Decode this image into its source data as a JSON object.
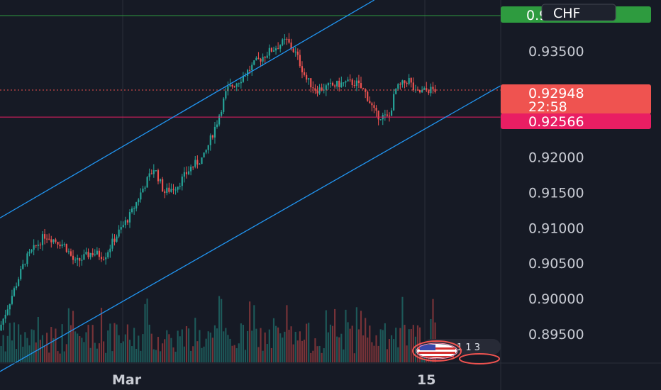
{
  "symbol": {
    "currency_label": "CHF"
  },
  "price_tags": {
    "current_price": "0.92948",
    "countdown": "22:58",
    "red_line_price": "0.92566",
    "top_line_price": "0.94000"
  },
  "colors": {
    "background": "#161a25",
    "up": "#26a69a",
    "down": "#ef5350",
    "channel": "#2196f3",
    "top_line": "#2e9b3f",
    "red_line": "#e91e63",
    "axis_text": "#c9ccd4"
  },
  "icons": {
    "flag": "us-flag-icon"
  },
  "event_badge_text": "1 1 3",
  "chart_data": {
    "type": "candlestick",
    "y_axis": {
      "ticks": [
        "0.93500",
        "0.92000",
        "0.91500",
        "0.91000",
        "0.90500",
        "0.90000",
        "0.89500"
      ],
      "tick_values": [
        0.935,
        0.92,
        0.915,
        0.91,
        0.905,
        0.9,
        0.895
      ],
      "ylim": [
        0.8895,
        0.9415
      ]
    },
    "x_axis": {
      "ticks": [
        "Mar",
        "15"
      ]
    },
    "current_price": 0.92948,
    "horizontal_lines": [
      0.94,
      0.92948,
      0.92566
    ],
    "trend_channel": {
      "upper": [
        [
          0,
          0.9114
        ],
        [
          0.5,
          0.9386
        ]
      ],
      "lower": [
        [
          0,
          0.8897
        ],
        [
          0.75,
          0.9297
        ]
      ]
    },
    "path": [
      [
        0.0,
        0.8955
      ],
      [
        0.02,
        0.9005
      ],
      [
        0.04,
        0.9055
      ],
      [
        0.07,
        0.909
      ],
      [
        0.1,
        0.9075
      ],
      [
        0.115,
        0.905
      ],
      [
        0.14,
        0.9065
      ],
      [
        0.16,
        0.906
      ],
      [
        0.175,
        0.9085
      ],
      [
        0.2,
        0.912
      ],
      [
        0.22,
        0.916
      ],
      [
        0.235,
        0.9185
      ],
      [
        0.25,
        0.915
      ],
      [
        0.27,
        0.916
      ],
      [
        0.29,
        0.9185
      ],
      [
        0.31,
        0.92
      ],
      [
        0.33,
        0.925
      ],
      [
        0.345,
        0.9295
      ],
      [
        0.365,
        0.931
      ],
      [
        0.39,
        0.9335
      ],
      [
        0.41,
        0.935
      ],
      [
        0.435,
        0.9365
      ],
      [
        0.45,
        0.9345
      ],
      [
        0.465,
        0.931
      ],
      [
        0.48,
        0.9295
      ],
      [
        0.5,
        0.93
      ],
      [
        0.525,
        0.9305
      ],
      [
        0.54,
        0.9305
      ],
      [
        0.555,
        0.929
      ],
      [
        0.57,
        0.926
      ],
      [
        0.59,
        0.9255
      ],
      [
        0.6,
        0.9295
      ],
      [
        0.62,
        0.931
      ],
      [
        0.63,
        0.929
      ],
      [
        0.65,
        0.9295
      ]
    ]
  }
}
